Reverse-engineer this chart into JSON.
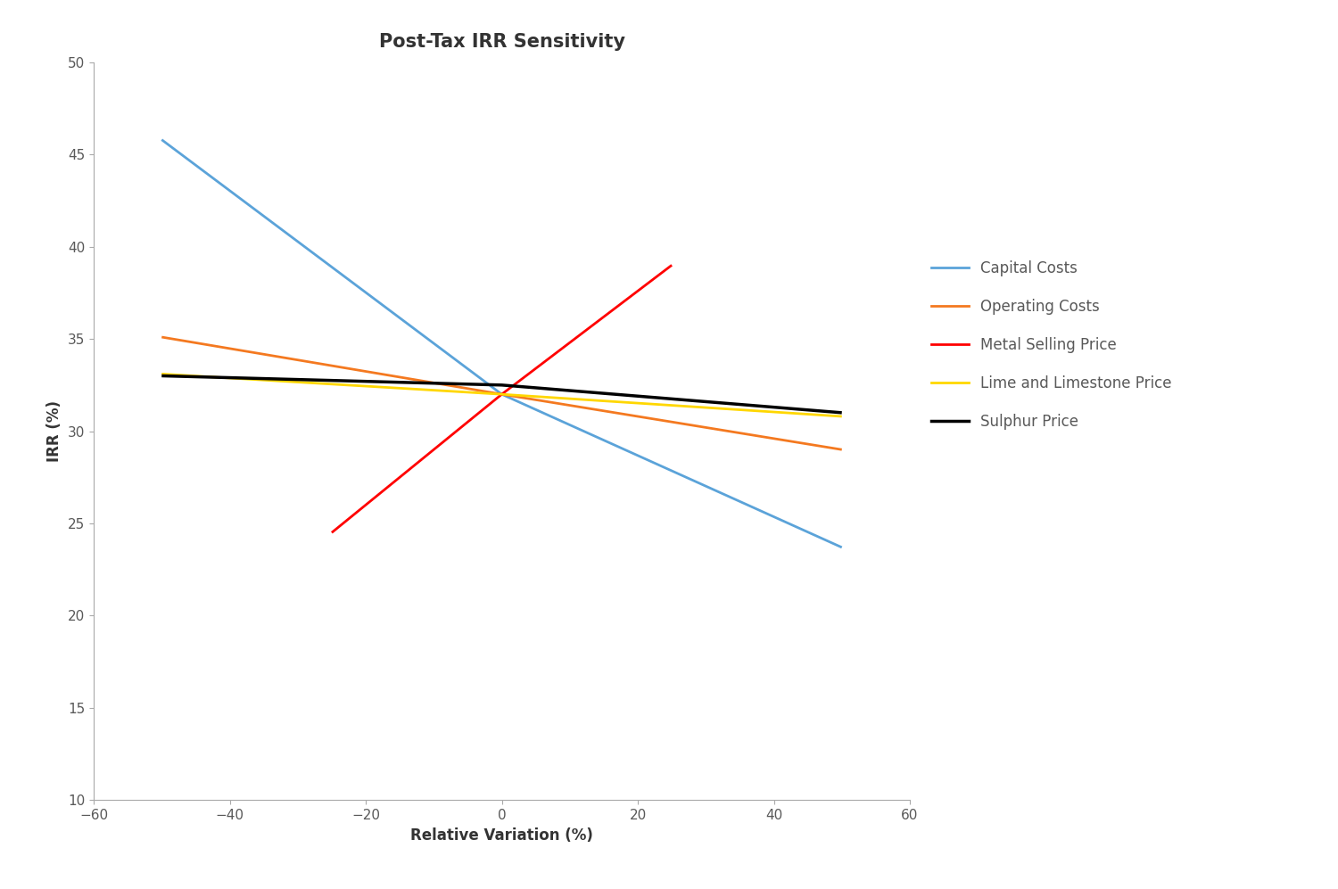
{
  "title": "Post-Tax IRR Sensitivity",
  "xlabel": "Relative Variation (%)",
  "ylabel": "IRR (%)",
  "xlim": [
    -60,
    60
  ],
  "ylim": [
    10,
    50
  ],
  "xticks": [
    -60,
    -40,
    -20,
    0,
    20,
    40,
    60
  ],
  "yticks": [
    10,
    15,
    20,
    25,
    30,
    35,
    40,
    45,
    50
  ],
  "series": [
    {
      "label": "Capital Costs",
      "color": "#5BA3D9",
      "linewidth": 2.0,
      "x": [
        -50,
        0,
        50
      ],
      "y": [
        45.8,
        32.0,
        23.7
      ]
    },
    {
      "label": "Operating Costs",
      "color": "#F47920",
      "linewidth": 2.0,
      "x": [
        -50,
        0,
        50
      ],
      "y": [
        35.1,
        32.0,
        29.0
      ]
    },
    {
      "label": "Metal Selling Price",
      "color": "#FF0000",
      "linewidth": 2.0,
      "x": [
        -25,
        0,
        25
      ],
      "y": [
        24.5,
        32.0,
        39.0
      ]
    },
    {
      "label": "Lime and Limestone Price",
      "color": "#FFD700",
      "linewidth": 2.0,
      "x": [
        -50,
        0,
        50
      ],
      "y": [
        33.1,
        32.0,
        30.8
      ]
    },
    {
      "label": "Sulphur Price",
      "color": "#000000",
      "linewidth": 2.5,
      "x": [
        -50,
        0,
        50
      ],
      "y": [
        33.0,
        32.5,
        31.0
      ]
    }
  ],
  "background_color": "#FFFFFF",
  "title_fontsize": 15,
  "axis_label_fontsize": 12,
  "tick_fontsize": 11,
  "legend_fontsize": 12,
  "legend_text_color": "#595959"
}
